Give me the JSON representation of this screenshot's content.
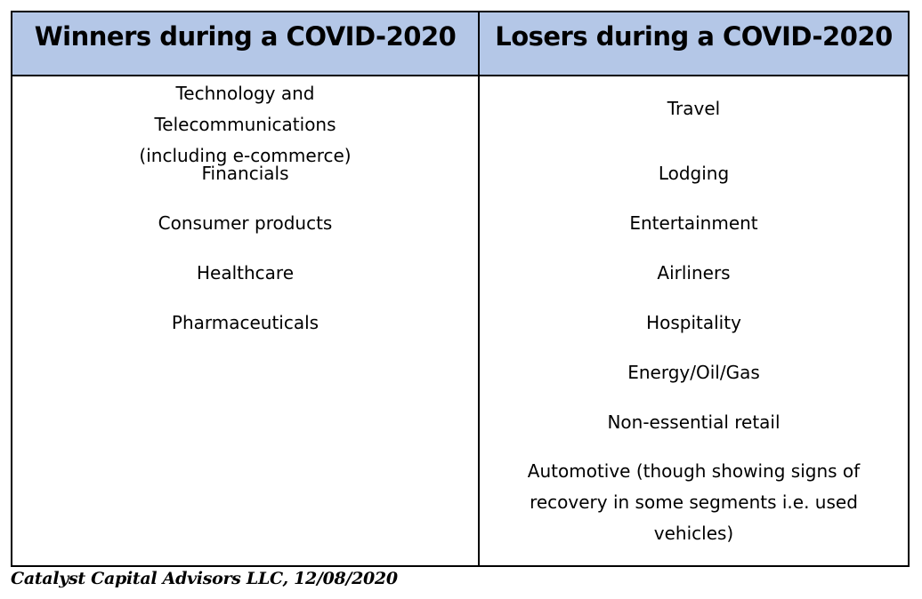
{
  "table": {
    "headers": {
      "winners": "Winners during a COVID-2020",
      "losers": "Losers during a COVID-2020"
    },
    "winners": [
      "Technology and Telecommunications (including e-commerce)",
      "Financials",
      "Consumer products",
      "Healthcare",
      "Pharmaceuticals"
    ],
    "losers": [
      "Travel",
      "Lodging",
      "Entertainment",
      "Airliners",
      "Hospitality",
      "Energy/Oil/Gas",
      "Non-essential retail",
      "Automotive (though showing signs of recovery in some segments i.e. used vehicles)"
    ]
  },
  "footer": {
    "source": "Catalyst Capital Advisors LLC, 12/08/2020"
  }
}
